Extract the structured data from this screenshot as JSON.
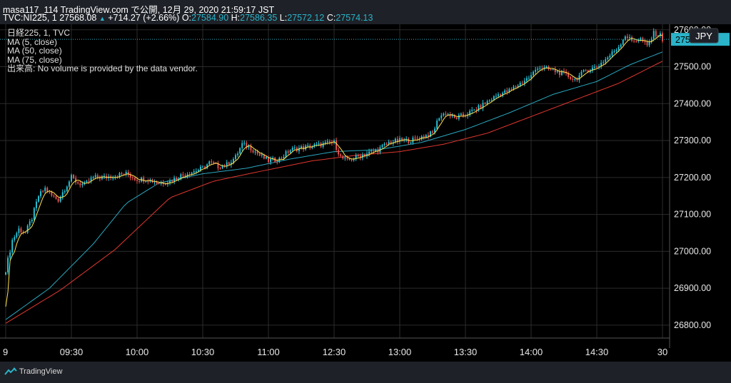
{
  "header": {
    "line1": "masa117_114 TradingView.com で公開, 12月 29, 2020 21:59:17 JST",
    "symbol": "TVC:NI225, 1",
    "last": "27568.08",
    "up_glyph": "▲",
    "change": "+714.27 (+2.66%)",
    "o_label": "O:",
    "o": "27584.90",
    "h_label": "H:",
    "h": "27586.35",
    "l_label": "L:",
    "l": "27572.12",
    "c_label": "C:",
    "c": "27574.13"
  },
  "legend": {
    "title": "日経225, 1, TVC",
    "ma1": "MA (5, close)",
    "ma2": "MA (50, close)",
    "ma3": "MA (75, close)",
    "volume_note": "出来高: No volume is provided by the data vendor."
  },
  "footer": {
    "brand": "TradingView"
  },
  "chart_data": {
    "type": "candlestick",
    "currency": "JPY",
    "last_price_label": "27574.13",
    "y_ticks": [
      "26800.00",
      "26900.00",
      "27000.00",
      "27100.00",
      "27200.00",
      "27300.00",
      "27400.00",
      "27500.00",
      "27600.00"
    ],
    "y_tick_values": [
      26800,
      26900,
      27000,
      27100,
      27200,
      27300,
      27400,
      27500,
      27600
    ],
    "ylim": [
      26765,
      27615
    ],
    "x_ticks": [
      "9",
      "09:30",
      "10:00",
      "10:30",
      "11:00",
      "12:30",
      "13:00",
      "13:30",
      "14:00",
      "14:30",
      "30"
    ],
    "x_tick_index": [
      0,
      30,
      60,
      90,
      120,
      150,
      180,
      210,
      240,
      270,
      300
    ],
    "xlim": [
      0,
      300
    ],
    "grid": true,
    "colors": {
      "background": "#000000",
      "grid": "#2b2b2b",
      "up": "#26c6da",
      "down": "#ef5350",
      "ma5": "#ffe14d",
      "ma50": "#2aa7c0",
      "ma75": "#e0382f",
      "last_price": "#2ab3c9"
    },
    "close_anchors": [
      {
        "i": 0,
        "v": 26950
      },
      {
        "i": 3,
        "v": 27030
      },
      {
        "i": 6,
        "v": 27060
      },
      {
        "i": 9,
        "v": 27050
      },
      {
        "i": 12,
        "v": 27090
      },
      {
        "i": 15,
        "v": 27150
      },
      {
        "i": 18,
        "v": 27170
      },
      {
        "i": 21,
        "v": 27150
      },
      {
        "i": 24,
        "v": 27140
      },
      {
        "i": 27,
        "v": 27170
      },
      {
        "i": 30,
        "v": 27200
      },
      {
        "i": 33,
        "v": 27185
      },
      {
        "i": 36,
        "v": 27180
      },
      {
        "i": 40,
        "v": 27200
      },
      {
        "i": 45,
        "v": 27200
      },
      {
        "i": 50,
        "v": 27205
      },
      {
        "i": 55,
        "v": 27210
      },
      {
        "i": 60,
        "v": 27195
      },
      {
        "i": 65,
        "v": 27195
      },
      {
        "i": 70,
        "v": 27185
      },
      {
        "i": 75,
        "v": 27190
      },
      {
        "i": 80,
        "v": 27205
      },
      {
        "i": 85,
        "v": 27215
      },
      {
        "i": 90,
        "v": 27225
      },
      {
        "i": 93,
        "v": 27240
      },
      {
        "i": 97,
        "v": 27230
      },
      {
        "i": 101,
        "v": 27235
      },
      {
        "i": 105,
        "v": 27255
      },
      {
        "i": 108,
        "v": 27290
      },
      {
        "i": 112,
        "v": 27280
      },
      {
        "i": 116,
        "v": 27260
      },
      {
        "i": 120,
        "v": 27245
      },
      {
        "i": 125,
        "v": 27250
      },
      {
        "i": 130,
        "v": 27275
      },
      {
        "i": 135,
        "v": 27280
      },
      {
        "i": 140,
        "v": 27285
      },
      {
        "i": 145,
        "v": 27290
      },
      {
        "i": 150,
        "v": 27295
      },
      {
        "i": 153,
        "v": 27255
      },
      {
        "i": 156,
        "v": 27245
      },
      {
        "i": 160,
        "v": 27255
      },
      {
        "i": 165,
        "v": 27265
      },
      {
        "i": 170,
        "v": 27275
      },
      {
        "i": 175,
        "v": 27295
      },
      {
        "i": 180,
        "v": 27300
      },
      {
        "i": 185,
        "v": 27300
      },
      {
        "i": 190,
        "v": 27310
      },
      {
        "i": 195,
        "v": 27320
      },
      {
        "i": 198,
        "v": 27365
      },
      {
        "i": 201,
        "v": 27375
      },
      {
        "i": 205,
        "v": 27360
      },
      {
        "i": 210,
        "v": 27370
      },
      {
        "i": 215,
        "v": 27385
      },
      {
        "i": 220,
        "v": 27405
      },
      {
        "i": 225,
        "v": 27425
      },
      {
        "i": 230,
        "v": 27435
      },
      {
        "i": 235,
        "v": 27455
      },
      {
        "i": 240,
        "v": 27475
      },
      {
        "i": 243,
        "v": 27500
      },
      {
        "i": 246,
        "v": 27495
      },
      {
        "i": 250,
        "v": 27490
      },
      {
        "i": 255,
        "v": 27480
      },
      {
        "i": 260,
        "v": 27465
      },
      {
        "i": 265,
        "v": 27490
      },
      {
        "i": 270,
        "v": 27500
      },
      {
        "i": 275,
        "v": 27525
      },
      {
        "i": 280,
        "v": 27555
      },
      {
        "i": 283,
        "v": 27585
      },
      {
        "i": 286,
        "v": 27570
      },
      {
        "i": 290,
        "v": 27575
      },
      {
        "i": 293,
        "v": 27555
      },
      {
        "i": 296,
        "v": 27590
      },
      {
        "i": 299,
        "v": 27585
      },
      {
        "i": 300,
        "v": 27574
      }
    ],
    "ma50_anchors": [
      {
        "i": 0,
        "v": 26815
      },
      {
        "i": 20,
        "v": 26900
      },
      {
        "i": 40,
        "v": 27020
      },
      {
        "i": 55,
        "v": 27130
      },
      {
        "i": 70,
        "v": 27185
      },
      {
        "i": 90,
        "v": 27210
      },
      {
        "i": 110,
        "v": 27225
      },
      {
        "i": 130,
        "v": 27250
      },
      {
        "i": 150,
        "v": 27270
      },
      {
        "i": 170,
        "v": 27275
      },
      {
        "i": 190,
        "v": 27295
      },
      {
        "i": 210,
        "v": 27330
      },
      {
        "i": 230,
        "v": 27375
      },
      {
        "i": 250,
        "v": 27425
      },
      {
        "i": 270,
        "v": 27460
      },
      {
        "i": 285,
        "v": 27505
      },
      {
        "i": 300,
        "v": 27540
      }
    ],
    "ma75_anchors": [
      {
        "i": 0,
        "v": 26805
      },
      {
        "i": 25,
        "v": 26895
      },
      {
        "i": 50,
        "v": 27005
      },
      {
        "i": 75,
        "v": 27145
      },
      {
        "i": 95,
        "v": 27190
      },
      {
        "i": 115,
        "v": 27215
      },
      {
        "i": 140,
        "v": 27245
      },
      {
        "i": 160,
        "v": 27260
      },
      {
        "i": 180,
        "v": 27270
      },
      {
        "i": 200,
        "v": 27290
      },
      {
        "i": 220,
        "v": 27320
      },
      {
        "i": 240,
        "v": 27365
      },
      {
        "i": 260,
        "v": 27410
      },
      {
        "i": 280,
        "v": 27455
      },
      {
        "i": 300,
        "v": 27515
      }
    ]
  }
}
